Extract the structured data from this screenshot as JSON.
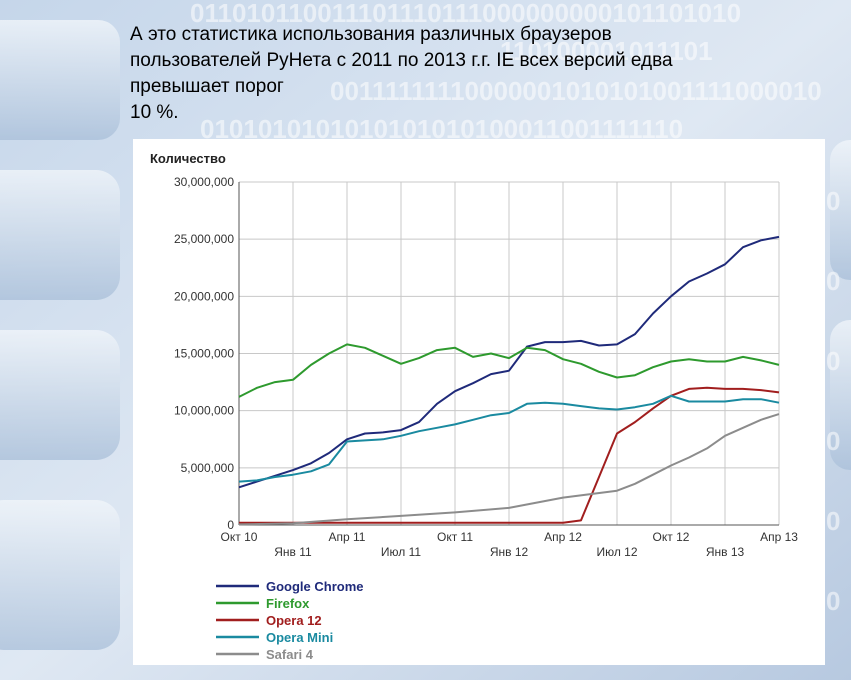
{
  "slide": {
    "title_lines": [
      "А это статистика использования различных браузеров",
      "пользователей РуНета с 2011 по 2013 г.г. IE  всех версий едва",
      "превышает порог",
      "10 %."
    ]
  },
  "chart_data": {
    "type": "line",
    "ylabel": "Количество",
    "ylim": [
      0,
      30000000
    ],
    "xlim": [
      "2010-10",
      "2013-04"
    ],
    "y_ticks": [
      {
        "value": 0,
        "label": "0"
      },
      {
        "value": 5000000,
        "label": "5,000,000"
      },
      {
        "value": 10000000,
        "label": "10,000,000"
      },
      {
        "value": 15000000,
        "label": "15,000,000"
      },
      {
        "value": 20000000,
        "label": "20,000,000"
      },
      {
        "value": 25000000,
        "label": "25,000,000"
      },
      {
        "value": 30000000,
        "label": "30,000,000"
      }
    ],
    "x_ticks": [
      {
        "date": "2010-10",
        "label": "Окт 10"
      },
      {
        "date": "2011-01",
        "label": "Янв 11"
      },
      {
        "date": "2011-04",
        "label": "Апр 11"
      },
      {
        "date": "2011-07",
        "label": "Июл 11"
      },
      {
        "date": "2011-10",
        "label": "Окт 11"
      },
      {
        "date": "2012-01",
        "label": "Янв 12"
      },
      {
        "date": "2012-04",
        "label": "Апр 12"
      },
      {
        "date": "2012-07",
        "label": "Июл 12"
      },
      {
        "date": "2012-10",
        "label": "Окт 12"
      },
      {
        "date": "2013-01",
        "label": "Янв 13"
      },
      {
        "date": "2013-04",
        "label": "Апр 13"
      }
    ],
    "grid": true,
    "legend_position": "bottom-left",
    "series": [
      {
        "name": "Google Chrome",
        "color": "#1f2a7a",
        "points": [
          [
            "2010-10",
            3300000
          ],
          [
            "2010-11",
            3800000
          ],
          [
            "2010-12",
            4300000
          ],
          [
            "2011-01",
            4800000
          ],
          [
            "2011-02",
            5400000
          ],
          [
            "2011-03",
            6300000
          ],
          [
            "2011-04",
            7500000
          ],
          [
            "2011-05",
            8000000
          ],
          [
            "2011-06",
            8100000
          ],
          [
            "2011-07",
            8300000
          ],
          [
            "2011-08",
            9000000
          ],
          [
            "2011-09",
            10600000
          ],
          [
            "2011-10",
            11700000
          ],
          [
            "2011-11",
            12400000
          ],
          [
            "2011-12",
            13200000
          ],
          [
            "2012-01",
            13500000
          ],
          [
            "2012-02",
            15600000
          ],
          [
            "2012-03",
            16000000
          ],
          [
            "2012-04",
            16000000
          ],
          [
            "2012-05",
            16100000
          ],
          [
            "2012-06",
            15700000
          ],
          [
            "2012-07",
            15800000
          ],
          [
            "2012-08",
            16700000
          ],
          [
            "2012-09",
            18500000
          ],
          [
            "2012-10",
            20000000
          ],
          [
            "2012-11",
            21300000
          ],
          [
            "2012-12",
            22000000
          ],
          [
            "2013-01",
            22800000
          ],
          [
            "2013-02",
            24300000
          ],
          [
            "2013-03",
            24900000
          ],
          [
            "2013-04",
            25200000
          ]
        ]
      },
      {
        "name": "Firefox",
        "color": "#2e9a2e",
        "points": [
          [
            "2010-10",
            11200000
          ],
          [
            "2010-11",
            12000000
          ],
          [
            "2010-12",
            12500000
          ],
          [
            "2011-01",
            12700000
          ],
          [
            "2011-02",
            14000000
          ],
          [
            "2011-03",
            15000000
          ],
          [
            "2011-04",
            15800000
          ],
          [
            "2011-05",
            15500000
          ],
          [
            "2011-06",
            14800000
          ],
          [
            "2011-07",
            14100000
          ],
          [
            "2011-08",
            14600000
          ],
          [
            "2011-09",
            15300000
          ],
          [
            "2011-10",
            15500000
          ],
          [
            "2011-11",
            14700000
          ],
          [
            "2011-12",
            15000000
          ],
          [
            "2012-01",
            14600000
          ],
          [
            "2012-02",
            15500000
          ],
          [
            "2012-03",
            15300000
          ],
          [
            "2012-04",
            14500000
          ],
          [
            "2012-05",
            14100000
          ],
          [
            "2012-06",
            13400000
          ],
          [
            "2012-07",
            12900000
          ],
          [
            "2012-08",
            13100000
          ],
          [
            "2012-09",
            13800000
          ],
          [
            "2012-10",
            14300000
          ],
          [
            "2012-11",
            14500000
          ],
          [
            "2012-12",
            14300000
          ],
          [
            "2013-01",
            14300000
          ],
          [
            "2013-02",
            14700000
          ],
          [
            "2013-03",
            14400000
          ],
          [
            "2013-04",
            14000000
          ]
        ]
      },
      {
        "name": "Opera 12",
        "color": "#a11e1e",
        "points": [
          [
            "2010-10",
            200000
          ],
          [
            "2011-01",
            200000
          ],
          [
            "2011-04",
            200000
          ],
          [
            "2011-07",
            200000
          ],
          [
            "2011-10",
            200000
          ],
          [
            "2012-01",
            200000
          ],
          [
            "2012-04",
            200000
          ],
          [
            "2012-05",
            400000
          ],
          [
            "2012-06",
            4200000
          ],
          [
            "2012-07",
            8000000
          ],
          [
            "2012-08",
            9000000
          ],
          [
            "2012-09",
            10200000
          ],
          [
            "2012-10",
            11300000
          ],
          [
            "2012-11",
            11900000
          ],
          [
            "2012-12",
            12000000
          ],
          [
            "2013-01",
            11900000
          ],
          [
            "2013-02",
            11900000
          ],
          [
            "2013-03",
            11800000
          ],
          [
            "2013-04",
            11600000
          ]
        ]
      },
      {
        "name": "Opera Mini",
        "color": "#1a8aa0",
        "points": [
          [
            "2010-10",
            3800000
          ],
          [
            "2010-11",
            3900000
          ],
          [
            "2010-12",
            4200000
          ],
          [
            "2011-01",
            4400000
          ],
          [
            "2011-02",
            4700000
          ],
          [
            "2011-03",
            5300000
          ],
          [
            "2011-04",
            7300000
          ],
          [
            "2011-05",
            7400000
          ],
          [
            "2011-06",
            7500000
          ],
          [
            "2011-07",
            7800000
          ],
          [
            "2011-08",
            8200000
          ],
          [
            "2011-09",
            8500000
          ],
          [
            "2011-10",
            8800000
          ],
          [
            "2011-11",
            9200000
          ],
          [
            "2011-12",
            9600000
          ],
          [
            "2012-01",
            9800000
          ],
          [
            "2012-02",
            10600000
          ],
          [
            "2012-03",
            10700000
          ],
          [
            "2012-04",
            10600000
          ],
          [
            "2012-05",
            10400000
          ],
          [
            "2012-06",
            10200000
          ],
          [
            "2012-07",
            10100000
          ],
          [
            "2012-08",
            10300000
          ],
          [
            "2012-09",
            10600000
          ],
          [
            "2012-10",
            11300000
          ],
          [
            "2012-11",
            10800000
          ],
          [
            "2012-12",
            10800000
          ],
          [
            "2013-01",
            10800000
          ],
          [
            "2013-02",
            11000000
          ],
          [
            "2013-03",
            11000000
          ],
          [
            "2013-04",
            10700000
          ]
        ]
      },
      {
        "name": "Safari 4",
        "color": "#8c8c8c",
        "points": [
          [
            "2010-10",
            50000
          ],
          [
            "2011-01",
            150000
          ],
          [
            "2011-04",
            500000
          ],
          [
            "2011-07",
            800000
          ],
          [
            "2011-10",
            1100000
          ],
          [
            "2012-01",
            1500000
          ],
          [
            "2012-04",
            2400000
          ],
          [
            "2012-07",
            3000000
          ],
          [
            "2012-08",
            3600000
          ],
          [
            "2012-09",
            4400000
          ],
          [
            "2012-10",
            5200000
          ],
          [
            "2012-11",
            5900000
          ],
          [
            "2012-12",
            6700000
          ],
          [
            "2013-01",
            7800000
          ],
          [
            "2013-02",
            8500000
          ],
          [
            "2013-03",
            9200000
          ],
          [
            "2013-04",
            9700000
          ]
        ]
      }
    ]
  }
}
